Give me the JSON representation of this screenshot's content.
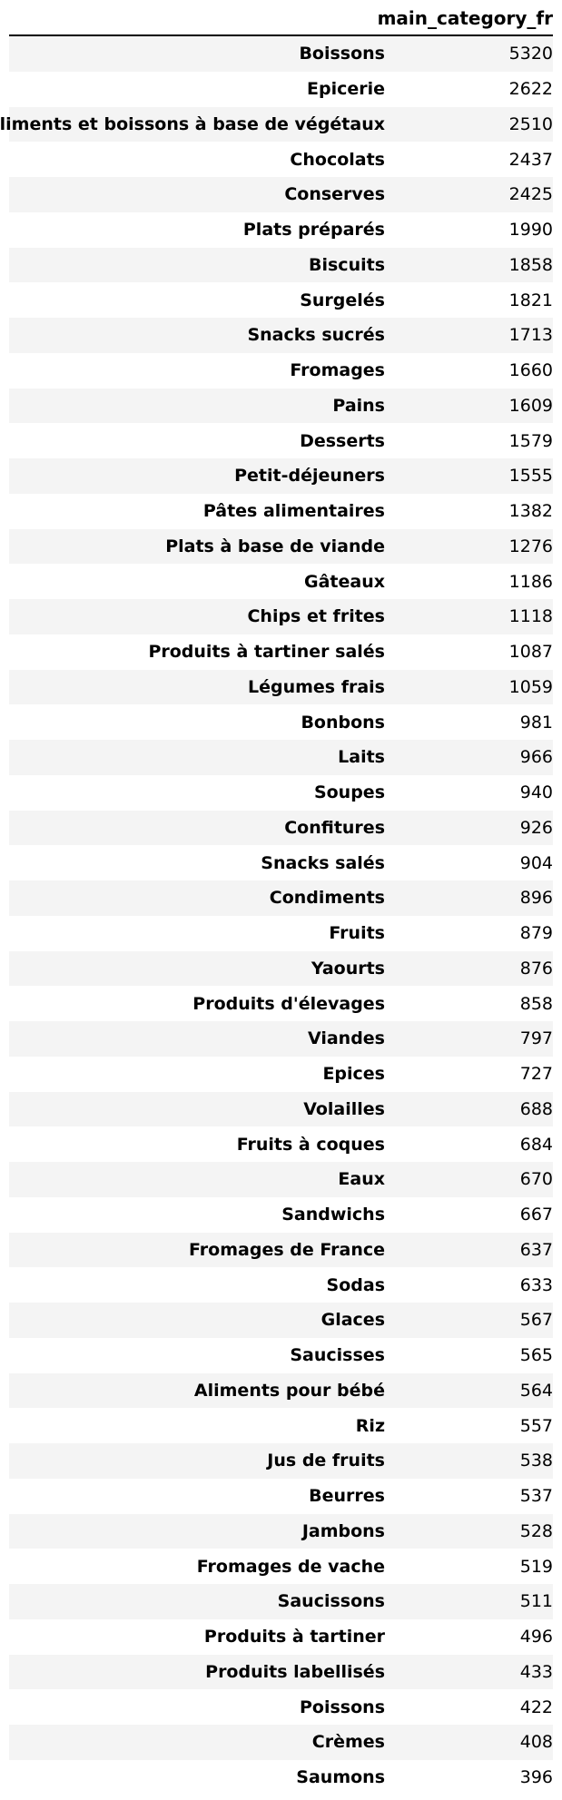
{
  "table": {
    "column_header": "main_category_fr",
    "rows": [
      {
        "label": "Boissons",
        "value": "5320"
      },
      {
        "label": "Epicerie",
        "value": "2622"
      },
      {
        "label": "Aliments et boissons à base de végétaux",
        "value": "2510"
      },
      {
        "label": "Chocolats",
        "value": "2437"
      },
      {
        "label": "Conserves",
        "value": "2425"
      },
      {
        "label": "Plats préparés",
        "value": "1990"
      },
      {
        "label": "Biscuits",
        "value": "1858"
      },
      {
        "label": "Surgelés",
        "value": "1821"
      },
      {
        "label": "Snacks sucrés",
        "value": "1713"
      },
      {
        "label": "Fromages",
        "value": "1660"
      },
      {
        "label": "Pains",
        "value": "1609"
      },
      {
        "label": "Desserts",
        "value": "1579"
      },
      {
        "label": "Petit-déjeuners",
        "value": "1555"
      },
      {
        "label": "Pâtes alimentaires",
        "value": "1382"
      },
      {
        "label": "Plats à base de viande",
        "value": "1276"
      },
      {
        "label": "Gâteaux",
        "value": "1186"
      },
      {
        "label": "Chips et frites",
        "value": "1118"
      },
      {
        "label": "Produits à tartiner salés",
        "value": "1087"
      },
      {
        "label": "Légumes frais",
        "value": "1059"
      },
      {
        "label": "Bonbons",
        "value": "981"
      },
      {
        "label": "Laits",
        "value": "966"
      },
      {
        "label": "Soupes",
        "value": "940"
      },
      {
        "label": "Confitures",
        "value": "926"
      },
      {
        "label": "Snacks salés",
        "value": "904"
      },
      {
        "label": "Condiments",
        "value": "896"
      },
      {
        "label": "Fruits",
        "value": "879"
      },
      {
        "label": "Yaourts",
        "value": "876"
      },
      {
        "label": "Produits d'élevages",
        "value": "858"
      },
      {
        "label": "Viandes",
        "value": "797"
      },
      {
        "label": "Epices",
        "value": "727"
      },
      {
        "label": "Volailles",
        "value": "688"
      },
      {
        "label": "Fruits à coques",
        "value": "684"
      },
      {
        "label": "Eaux",
        "value": "670"
      },
      {
        "label": "Sandwichs",
        "value": "667"
      },
      {
        "label": "Fromages de France",
        "value": "637"
      },
      {
        "label": "Sodas",
        "value": "633"
      },
      {
        "label": "Glaces",
        "value": "567"
      },
      {
        "label": "Saucisses",
        "value": "565"
      },
      {
        "label": "Aliments pour bébé",
        "value": "564"
      },
      {
        "label": "Riz",
        "value": "557"
      },
      {
        "label": "Jus de fruits",
        "value": "538"
      },
      {
        "label": "Beurres",
        "value": "537"
      },
      {
        "label": "Jambons",
        "value": "528"
      },
      {
        "label": "Fromages de vache",
        "value": "519"
      },
      {
        "label": "Saucissons",
        "value": "511"
      },
      {
        "label": "Produits à tartiner",
        "value": "496"
      },
      {
        "label": "Produits labellisés",
        "value": "433"
      },
      {
        "label": "Poissons",
        "value": "422"
      },
      {
        "label": "Crèmes",
        "value": "408"
      },
      {
        "label": "Saumons",
        "value": "396"
      }
    ]
  },
  "colors": {
    "stripe": "#f4f4f4",
    "rule": "#000000",
    "text": "#000000",
    "background": "#ffffff"
  }
}
